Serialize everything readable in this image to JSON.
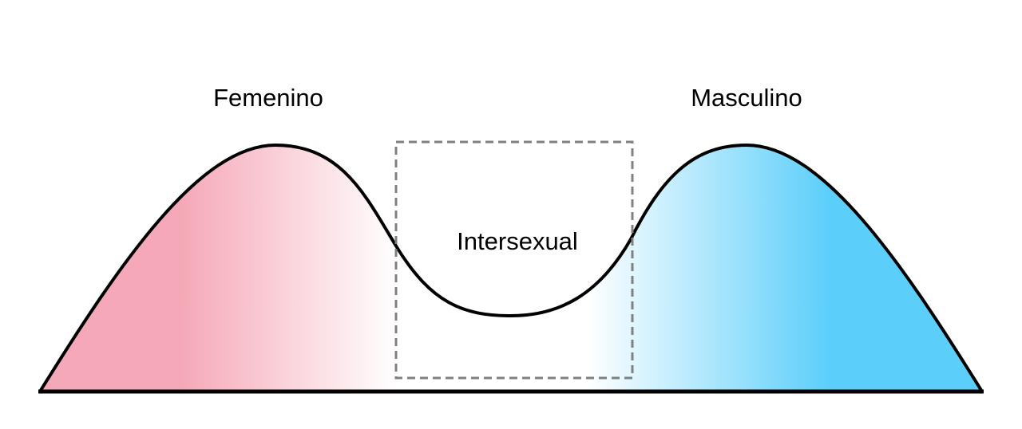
{
  "labels": {
    "left": "Femenino",
    "middle": "Intersexual",
    "right": "Masculino"
  },
  "colors": {
    "femenino": "#F5A9B8",
    "masculino": "#5BCEFA",
    "outline": "#000000",
    "dashed_box": "#808080"
  }
}
